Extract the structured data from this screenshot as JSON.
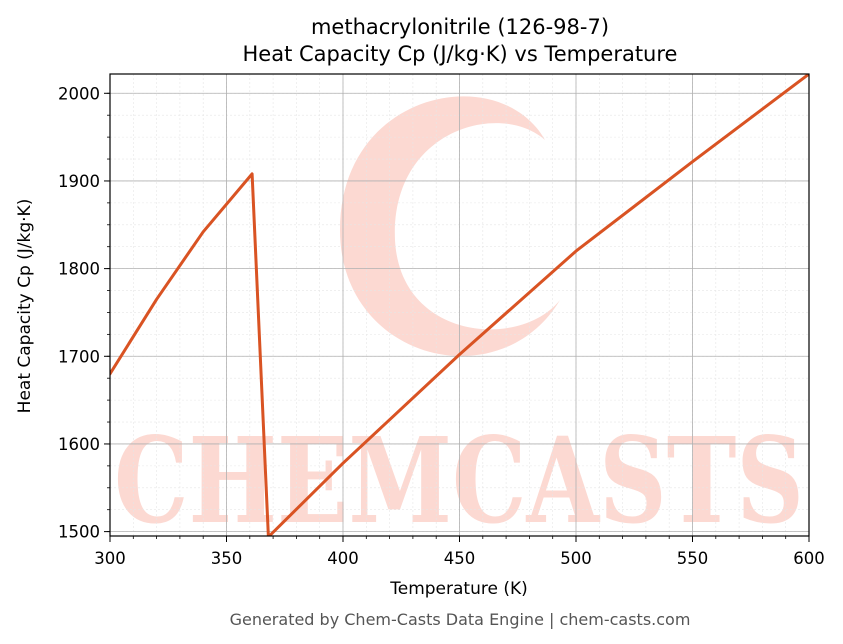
{
  "title_line1": "methacrylonitrile (126-98-7)",
  "title_line2": "Heat Capacity Cp (J/kg·K) vs Temperature",
  "footer": "Generated by Chem-Casts Data Engine | chem-casts.com",
  "watermark": "CHEMCASTS",
  "colors": {
    "line": "#d95323",
    "watermark": "#fcd9d2"
  },
  "chart_data": {
    "type": "line",
    "xlabel": "Temperature (K)",
    "ylabel": "Heat Capacity Cp (J/kg·K)",
    "xlim": [
      300,
      600
    ],
    "ylim": [
      1495,
      2022
    ],
    "xticks": [
      300,
      350,
      400,
      450,
      500,
      550,
      600
    ],
    "yticks": [
      1500,
      1600,
      1700,
      1800,
      1900,
      2000
    ],
    "grid": true,
    "series": [
      {
        "x": [
          300,
          320,
          340,
          361,
          368,
          400,
          450,
          500,
          550,
          600
        ],
        "y": [
          1680,
          1765,
          1842,
          1908,
          1494,
          1578,
          1702,
          1820,
          1922,
          2022
        ]
      }
    ]
  }
}
